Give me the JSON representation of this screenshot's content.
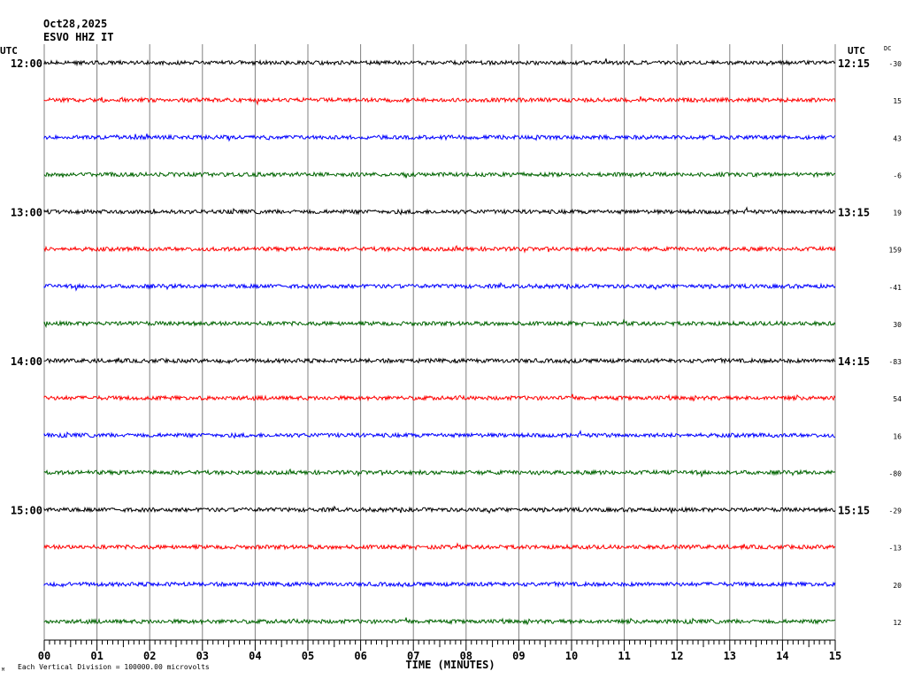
{
  "header": {
    "date": "Oct28,2025",
    "station": "ESVO HHZ IT"
  },
  "labels": {
    "utc_left": "UTC",
    "utc_right": "UTC",
    "dc": "DC",
    "footer_mark": "M",
    "scale_note": "Each Vertical Division = 100000.00 microvolts"
  },
  "chart_data": {
    "type": "line",
    "title": "",
    "xlabel": "TIME (MINUTES)",
    "ylabel": "",
    "xlim": [
      0,
      15
    ],
    "x_tick_labels": [
      "00",
      "01",
      "02",
      "03",
      "04",
      "05",
      "06",
      "07",
      "08",
      "09",
      "10",
      "11",
      "12",
      "13",
      "14",
      "15"
    ],
    "row_interval_minutes": 15,
    "row_count": 16,
    "left_hour_labels": [
      "12:00",
      "13:00",
      "14:00",
      "15:00"
    ],
    "right_hour_labels": [
      "12:15",
      "13:15",
      "14:15",
      "15:15"
    ],
    "hour_label_every_rows": 4,
    "dc_offsets": [
      -30,
      15,
      43,
      -6,
      19,
      159,
      -41,
      30,
      -83,
      54,
      16,
      -80,
      -29,
      -13,
      20,
      12
    ],
    "trace_colors": [
      "#000000",
      "#ff0000",
      "#0000ff",
      "#006400"
    ],
    "grid": "vertical-minutes"
  }
}
